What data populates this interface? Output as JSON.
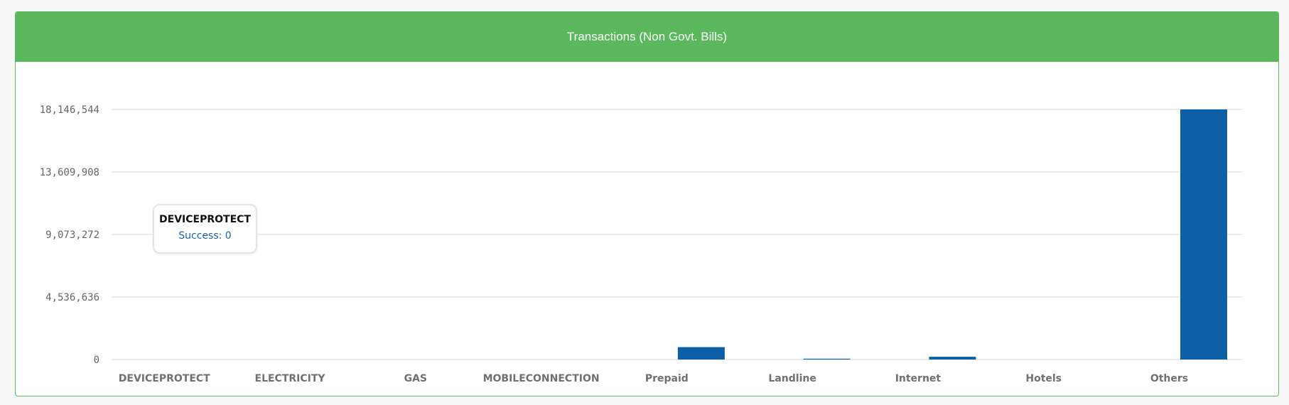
{
  "panel": {
    "title": "Transactions (Non Govt. Bills)"
  },
  "colors": {
    "header": "#5cb85c",
    "bar": "#0d5fa6",
    "grid": "#d9d9d9"
  },
  "tooltip": {
    "category": "DEVICEPROTECT",
    "series_label": "Success",
    "value_text": "0"
  },
  "chart_data": {
    "type": "bar",
    "title": "Transactions (Non Govt. Bills)",
    "xlabel": "",
    "ylabel": "",
    "categories": [
      "DEVICEPROTECT",
      "ELECTRICITY",
      "GAS",
      "MOBILECONNECTION",
      "Prepaid",
      "Landline",
      "Internet",
      "Hotels",
      "Others"
    ],
    "series": [
      {
        "name": "Success",
        "values": [
          0,
          0,
          0,
          0,
          900000,
          60000,
          200000,
          0,
          18146544
        ]
      }
    ],
    "y_ticks": [
      "0",
      "4,536,636",
      "9,073,272",
      "13,609,908",
      "18,146,544"
    ],
    "ylim": [
      0,
      18146544
    ],
    "grid": true,
    "legend": "none"
  }
}
